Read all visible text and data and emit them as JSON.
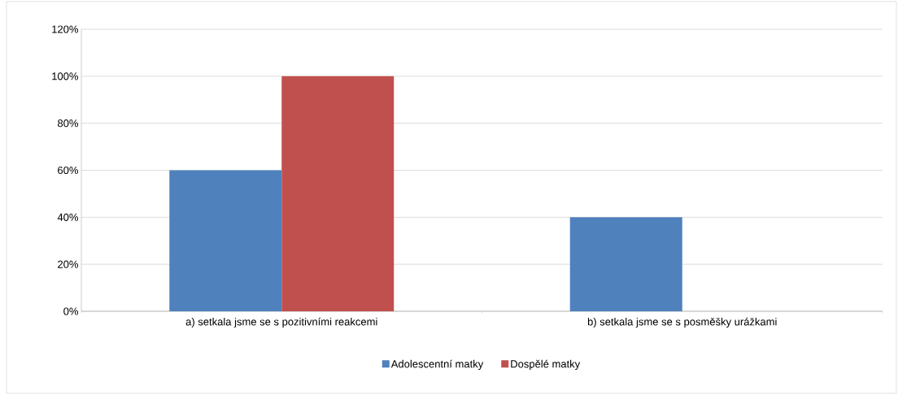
{
  "chart_data": {
    "type": "bar",
    "categories": [
      "a) setkala jsme se s pozitivními reakcemi",
      "b) setkala jsme se s posměšky urážkami"
    ],
    "series": [
      {
        "name": "Adolescentní matky",
        "color": "#4f81bd",
        "values": [
          60,
          40
        ]
      },
      {
        "name": "Dospělé matky",
        "color": "#c0504d",
        "values": [
          100,
          0
        ]
      }
    ],
    "ylim": [
      0,
      120
    ],
    "yticks": [
      {
        "value": 0,
        "label": "0%"
      },
      {
        "value": 20,
        "label": "20%"
      },
      {
        "value": 40,
        "label": "40%"
      },
      {
        "value": 60,
        "label": "60%"
      },
      {
        "value": 80,
        "label": "80%"
      },
      {
        "value": 100,
        "label": "100%"
      },
      {
        "value": 120,
        "label": "120%"
      }
    ],
    "grid": "y",
    "legend": "bottom"
  }
}
